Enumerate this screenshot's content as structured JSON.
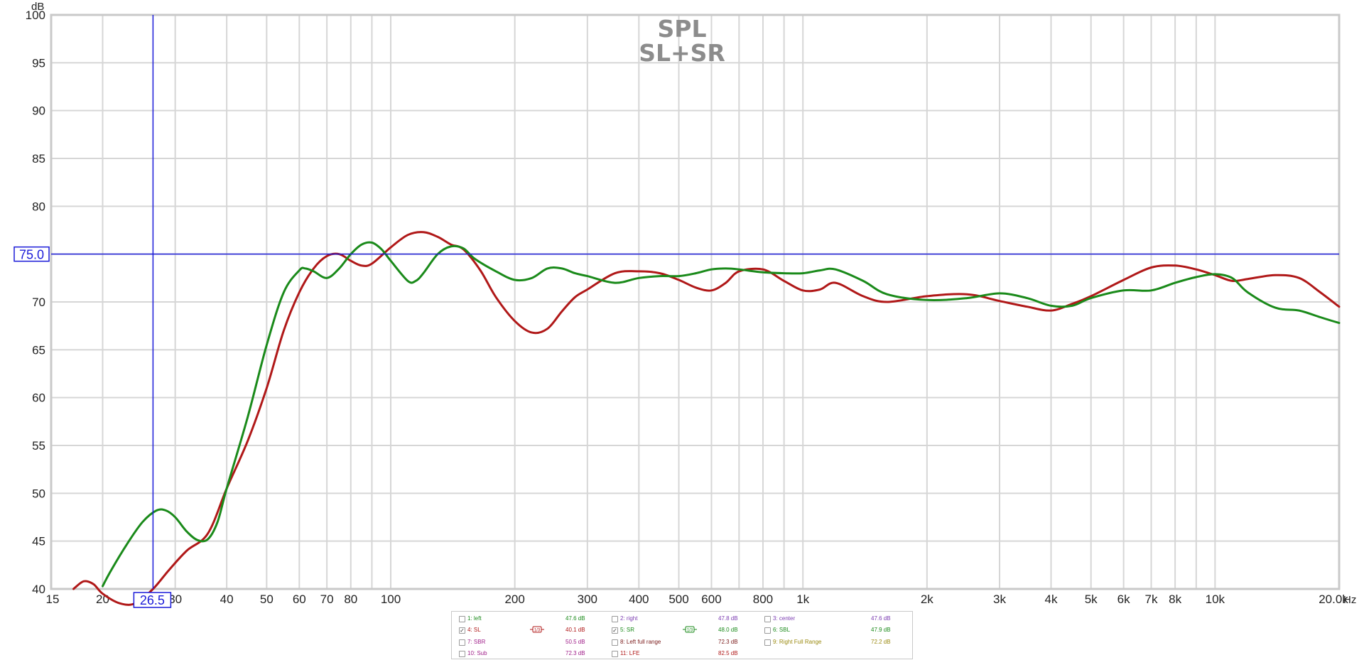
{
  "chart_data": {
    "type": "line",
    "title": "SPL",
    "subtitle": "SL+SR",
    "xlabel": "Hz",
    "ylabel": "dB",
    "x_scale": "log",
    "xlim": [
      15,
      20000
    ],
    "ylim": [
      40,
      100
    ],
    "x_ticks": [
      {
        "value": 15,
        "label": "15"
      },
      {
        "value": 20,
        "label": "20"
      },
      {
        "value": 30,
        "label": "30"
      },
      {
        "value": 40,
        "label": "40"
      },
      {
        "value": 50,
        "label": "50"
      },
      {
        "value": 60,
        "label": "60"
      },
      {
        "value": 70,
        "label": "70"
      },
      {
        "value": 80,
        "label": "80"
      },
      {
        "value": 100,
        "label": "100"
      },
      {
        "value": 200,
        "label": "200"
      },
      {
        "value": 300,
        "label": "300"
      },
      {
        "value": 400,
        "label": "400"
      },
      {
        "value": 500,
        "label": "500"
      },
      {
        "value": 600,
        "label": "600"
      },
      {
        "value": 800,
        "label": "800"
      },
      {
        "value": 1000,
        "label": "1k"
      },
      {
        "value": 2000,
        "label": "2k"
      },
      {
        "value": 3000,
        "label": "3k"
      },
      {
        "value": 4000,
        "label": "4k"
      },
      {
        "value": 5000,
        "label": "5k"
      },
      {
        "value": 6000,
        "label": "6k"
      },
      {
        "value": 7000,
        "label": "7k"
      },
      {
        "value": 8000,
        "label": "8k"
      },
      {
        "value": 10000,
        "label": "10k"
      },
      {
        "value": 20000,
        "label": "20.0k"
      }
    ],
    "y_ticks": [
      40,
      45,
      50,
      55,
      60,
      65,
      70,
      75,
      80,
      85,
      90,
      95,
      100
    ],
    "grid": true,
    "cursor": {
      "x": 26.5,
      "y": 75.0,
      "x_label": "26.5",
      "y_label": "75.0",
      "color": "#1a1ad8"
    },
    "series": [
      {
        "name": "4: SL",
        "color": "#b01818",
        "x": [
          17,
          18,
          19,
          20,
          22,
          24,
          26.5,
          29,
          32,
          36,
          40,
          45,
          50,
          55,
          60,
          65,
          70,
          75,
          80,
          85,
          90,
          100,
          110,
          120,
          130,
          140,
          150,
          165,
          180,
          200,
          220,
          240,
          260,
          280,
          300,
          350,
          400,
          450,
          500,
          550,
          600,
          650,
          700,
          800,
          900,
          1000,
          1100,
          1200,
          1400,
          1600,
          2000,
          2500,
          3000,
          3500,
          4000,
          4500,
          5000,
          6000,
          7000,
          8000,
          9000,
          10000,
          11000,
          12000,
          14000,
          16000,
          18000,
          20000
        ],
        "values": [
          40.0,
          40.8,
          40.5,
          39.5,
          38.5,
          38.5,
          40.0,
          42.0,
          44.0,
          45.8,
          50.5,
          55.5,
          61.0,
          67.0,
          71.0,
          73.5,
          74.8,
          75.0,
          74.3,
          73.8,
          74.0,
          75.7,
          77.0,
          77.3,
          76.8,
          76.0,
          75.5,
          73.3,
          70.5,
          68.0,
          66.8,
          67.2,
          69.0,
          70.5,
          71.3,
          73.0,
          73.2,
          73.0,
          72.3,
          71.5,
          71.2,
          72.0,
          73.2,
          73.4,
          72.2,
          71.2,
          71.3,
          72.0,
          70.6,
          70.0,
          70.6,
          70.8,
          70.1,
          69.5,
          69.1,
          69.8,
          70.6,
          72.3,
          73.6,
          73.8,
          73.4,
          72.8,
          72.2,
          72.4,
          72.8,
          72.5,
          71.0,
          69.5
        ]
      },
      {
        "name": "5: SR",
        "color": "#1a8a1a",
        "x": [
          20,
          21,
          23,
          25,
          27,
          28.5,
          30,
          32,
          34,
          36,
          38,
          40,
          45,
          50,
          55,
          60,
          62,
          65,
          70,
          75,
          80,
          85,
          90,
          95,
          100,
          110,
          115,
          120,
          130,
          140,
          150,
          160,
          180,
          200,
          220,
          240,
          260,
          280,
          300,
          350,
          400,
          450,
          500,
          550,
          600,
          650,
          700,
          800,
          900,
          1000,
          1100,
          1200,
          1400,
          1600,
          2000,
          2500,
          3000,
          3500,
          4000,
          4500,
          5000,
          6000,
          7000,
          8000,
          9000,
          10000,
          11000,
          12000,
          14000,
          16000,
          18000,
          20000
        ],
        "values": [
          40.3,
          42.0,
          44.8,
          47.0,
          48.2,
          48.2,
          47.5,
          46.0,
          45.1,
          45.2,
          47.0,
          50.5,
          58.0,
          65.5,
          71.0,
          73.3,
          73.5,
          73.2,
          72.5,
          73.5,
          75.0,
          76.0,
          76.2,
          75.5,
          74.3,
          72.2,
          72.2,
          73.0,
          75.0,
          75.8,
          75.6,
          74.5,
          73.2,
          72.3,
          72.5,
          73.5,
          73.5,
          73.0,
          72.7,
          72.0,
          72.5,
          72.7,
          72.7,
          73.0,
          73.4,
          73.5,
          73.4,
          73.1,
          73.0,
          73.0,
          73.3,
          73.4,
          72.2,
          70.8,
          70.2,
          70.4,
          70.9,
          70.4,
          69.6,
          69.6,
          70.4,
          71.2,
          71.2,
          72.0,
          72.6,
          72.9,
          72.5,
          71.0,
          69.4,
          69.1,
          68.4,
          67.8
        ]
      }
    ]
  },
  "legend": {
    "rows": [
      [
        {
          "id": "1",
          "name": "1: left",
          "value": "47.6 dB",
          "checked": false,
          "color": "#1a8a1a"
        },
        {
          "id": "2",
          "name": "2: right",
          "value": "47.8 dB",
          "checked": false,
          "color": "#7a3ab0"
        },
        {
          "id": "3",
          "name": "3: center",
          "value": "47.6 dB",
          "checked": false,
          "color": "#7a3ab0"
        }
      ],
      [
        {
          "id": "4",
          "name": "4: SL",
          "value": "40.1 dB",
          "checked": true,
          "color": "#b01818",
          "smoothing": "1/3"
        },
        {
          "id": "5",
          "name": "5: SR",
          "value": "48.0 dB",
          "checked": true,
          "color": "#1a8a1a",
          "smoothing": "1/3"
        },
        {
          "id": "6",
          "name": "6: SBL",
          "value": "47.9 dB",
          "checked": false,
          "color": "#1a8a1a"
        }
      ],
      [
        {
          "id": "7",
          "name": "7: SBR",
          "value": "50.5 dB",
          "checked": false,
          "color": "#a0208a"
        },
        {
          "id": "8",
          "name": "8: Left full range",
          "value": "72.3 dB",
          "checked": false,
          "color": "#7a1a1a"
        },
        {
          "id": "9",
          "name": "9: Right Full Range",
          "value": "72.2 dB",
          "checked": false,
          "color": "#9a8a10"
        }
      ],
      [
        {
          "id": "10",
          "name": "10: Sub",
          "value": "72.3 dB",
          "checked": false,
          "color": "#a0208a"
        },
        {
          "id": "11",
          "name": "11: LFE",
          "value": "82.5 dB",
          "checked": false,
          "color": "#b01818"
        }
      ]
    ]
  }
}
